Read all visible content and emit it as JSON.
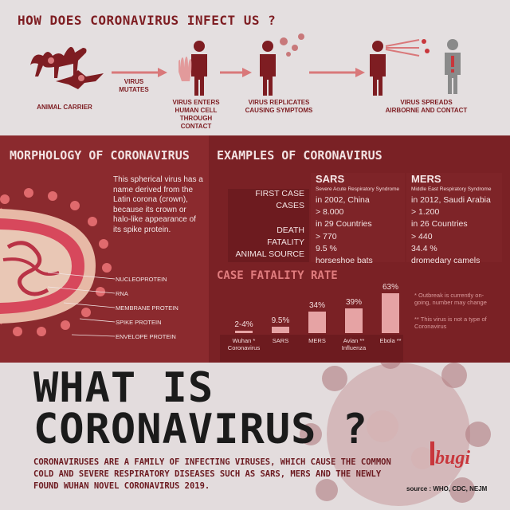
{
  "top": {
    "title": "HOW DOES CORONAVIRUS INFECT US ?",
    "steps": [
      {
        "label": "ANIMAL CARRIER"
      },
      {
        "label": "VIRUS\nMUTATES"
      },
      {
        "label": "VIRUS ENTERS\nHUMAN CELL\nTHROUGH CONTACT"
      },
      {
        "label": "VIRUS REPLICATES\nCAUSING SYMPTOMS"
      },
      {
        "label": "VIRUS SPREADS\nAIRBORNE AND CONTACT"
      }
    ]
  },
  "morphology": {
    "title": "MORPHOLOGY OF CORONAVIRUS",
    "text": "This spherical  virus has a name derived from the Latin corona (crown), because its crown or halo-like appearance of its spike protein.",
    "labels": [
      "NUCLEOPROTEIN",
      "RNA",
      "MEMBRANE PROTEIN",
      "SPIKE PROTEIN",
      "ENVELOPE PROTEIN"
    ]
  },
  "examples": {
    "title": "EXAMPLES OF CORONAVIRUS",
    "row_labels": [
      "FIRST CASE",
      "CASES",
      "",
      "DEATH",
      "FATALITY",
      "ANIMAL SOURCE"
    ],
    "viruses": [
      {
        "name": "SARS",
        "full_name": "Severe Acute Respiratory Syndrome",
        "values": [
          "in 2002, China",
          "> 8.000",
          "in 29 Countries",
          "> 770",
          "9.5 %",
          "horseshoe bats"
        ]
      },
      {
        "name": "MERS",
        "full_name": "Middle East Respiratory Syndrome",
        "values": [
          "in 2012, Saudi Arabia",
          "> 1.200",
          "in 26 Countries",
          "> 440",
          "34.4 %",
          "dromedary camels"
        ]
      }
    ]
  },
  "cfr": {
    "title": "CASE FATALITY RATE",
    "value_labels": [
      "2-4%",
      "9.5%",
      "34%",
      "39%",
      "63%"
    ],
    "categories": [
      "Wuhan *\nCoronavirus",
      "SARS",
      "MERS",
      "Avian **\nInfluenza",
      "Ebola **"
    ],
    "notes": [
      "* Outbreak is currently on-\ngoing, number may change",
      "** This virus is not a type of\nCoronavirus"
    ]
  },
  "chart_data": {
    "type": "bar",
    "title": "CASE FATALITY RATE",
    "categories": [
      "Wuhan * Coronavirus",
      "SARS",
      "MERS",
      "Avian ** Influenza",
      "Ebola **"
    ],
    "values": [
      3,
      9.5,
      34,
      39,
      63
    ],
    "ylim": [
      0,
      63
    ],
    "grid": false,
    "bar_color": "#e6a3a4"
  },
  "bottom": {
    "title_line1": "WHAT IS",
    "title_line2": "CORONAVIRUS ?",
    "description": "CORONAVIRUSES ARE A FAMILY OF INFECTING VIRUSES, WHICH CAUSE THE COMMON COLD AND SEVERE RESPIRATORY DISEASES SUCH AS SARS, MERS AND THE  NEWLY FOUND WUHAN NOVEL CORONAVIRUS 2019.",
    "logo_text": "bugi",
    "source": "source : WHO, CDC, NEJM"
  },
  "colors": {
    "dark_red": "#7a2125",
    "accent": "#c8373c",
    "light_bg": "#e4dfe0",
    "text_dark": "#1b1b1b"
  }
}
